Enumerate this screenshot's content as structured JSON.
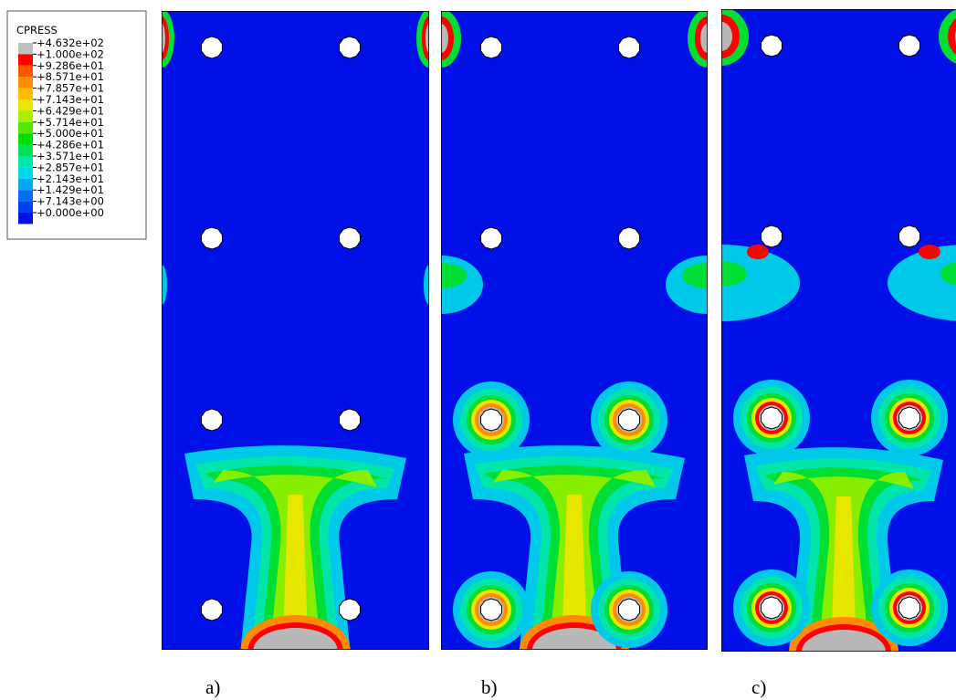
{
  "legend": {
    "title": "CPRESS",
    "entries": [
      {
        "label": "+4.632e+02",
        "color": "#c0c0c0"
      },
      {
        "label": "+1.000e+02",
        "color": "#ff0000"
      },
      {
        "label": "+9.286e+01",
        "color": "#ff5500"
      },
      {
        "label": "+8.571e+01",
        "color": "#ff8c00"
      },
      {
        "label": "+7.857e+01",
        "color": "#ffbb00"
      },
      {
        "label": "+7.143e+01",
        "color": "#e6e600"
      },
      {
        "label": "+6.429e+01",
        "color": "#aaee00"
      },
      {
        "label": "+5.714e+01",
        "color": "#55e600"
      },
      {
        "label": "+5.000e+01",
        "color": "#00dd00"
      },
      {
        "label": "+4.286e+01",
        "color": "#00e055"
      },
      {
        "label": "+3.571e+01",
        "color": "#00e6aa"
      },
      {
        "label": "+2.857e+01",
        "color": "#00d8e6"
      },
      {
        "label": "+2.143e+01",
        "color": "#00a8f0"
      },
      {
        "label": "+1.429e+01",
        "color": "#0070f0"
      },
      {
        "label": "+7.143e+00",
        "color": "#0040f0"
      },
      {
        "label": "+0.000e+00",
        "color": "#0010e6"
      }
    ]
  },
  "panels": [
    {
      "label": "a)"
    },
    {
      "label": "b)"
    },
    {
      "label": "c)"
    }
  ]
}
